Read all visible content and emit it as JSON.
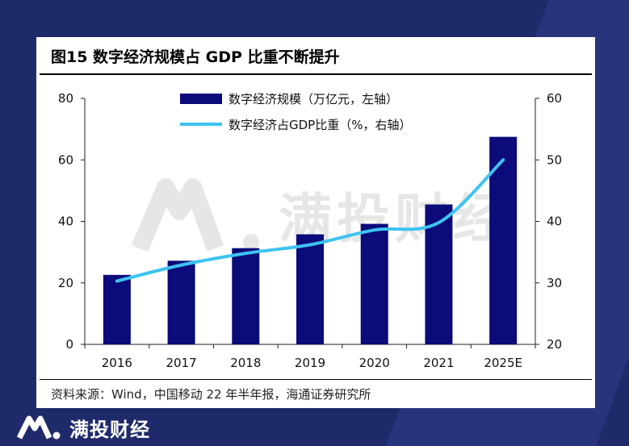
{
  "title": "图15 数字经济规模占 GDP 比重不断提升",
  "source": "资料来源：Wind，中国移动 22 年半年报，海通证券研究所",
  "watermark": "满投财经",
  "brand": "满投财经",
  "colors": {
    "bar": "#0b0b7a",
    "line": "#3ec3f0",
    "background": "#1f2a6b",
    "watermark": "#c8c8c8"
  },
  "chart_data": {
    "type": "bar",
    "categories": [
      "2016",
      "2017",
      "2018",
      "2019",
      "2020",
      "2021",
      "2025E"
    ],
    "series": [
      {
        "name": "数字经济规模（万亿元，左轴）",
        "type": "bar",
        "axis": "left",
        "values": [
          22.6,
          27.2,
          31.3,
          35.8,
          39.2,
          45.5,
          67.5
        ]
      },
      {
        "name": "数字经济占GDP比重（%，右轴）",
        "type": "line",
        "axis": "right",
        "values": [
          30.3,
          32.9,
          34.8,
          36.2,
          38.6,
          39.8,
          50
        ]
      }
    ],
    "ylim_left": [
      0,
      80
    ],
    "yticks_left": [
      "0",
      "20",
      "40",
      "60",
      "80"
    ],
    "ylim_right": [
      20,
      60
    ],
    "yticks_right": [
      "20",
      "30",
      "40",
      "50",
      "60"
    ],
    "legend": "top-center",
    "grid": false
  }
}
